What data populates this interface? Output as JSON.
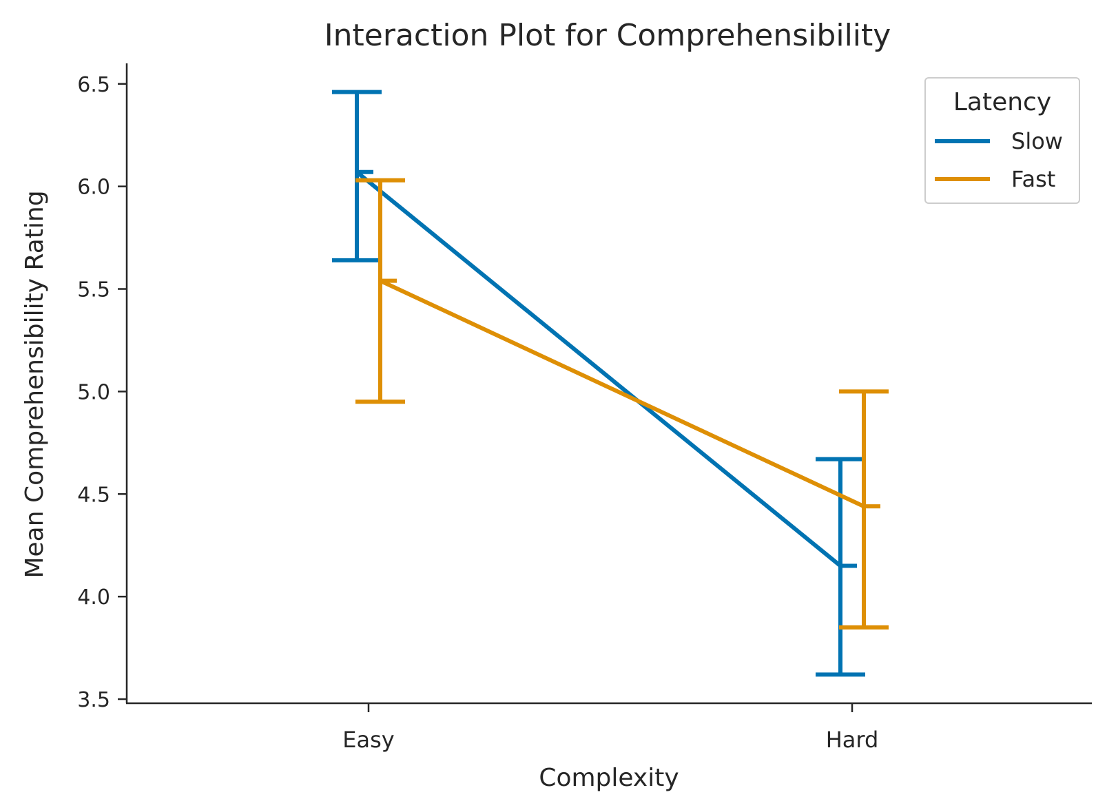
{
  "chart_data": {
    "type": "line",
    "title": "Interaction Plot for Comprehensibility",
    "xlabel": "Complexity",
    "ylabel": "Mean Comprehensibility Rating",
    "categories": [
      "Easy",
      "Hard"
    ],
    "ylim": [
      3.48,
      6.6
    ],
    "yticks": [
      "3.5",
      "4.0",
      "4.5",
      "5.0",
      "5.5",
      "6.0",
      "6.5"
    ],
    "grid": false,
    "legend": {
      "title": "Latency",
      "placement": "top-right"
    },
    "series": [
      {
        "name": "Slow",
        "color": "#0173b2",
        "values": [
          6.07,
          4.15
        ],
        "ci_low": [
          5.64,
          3.62
        ],
        "ci_high": [
          6.46,
          4.67
        ]
      },
      {
        "name": "Fast",
        "color": "#de8f05",
        "values": [
          5.54,
          4.44
        ],
        "ci_low": [
          4.95,
          3.85
        ],
        "ci_high": [
          6.03,
          5.0
        ]
      }
    ]
  }
}
